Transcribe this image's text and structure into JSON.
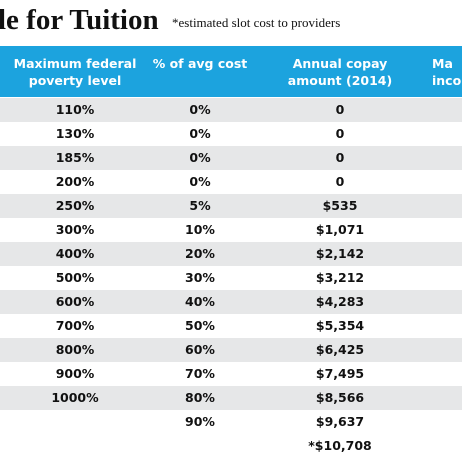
{
  "header": {
    "title": "le for Tuition",
    "note": "*estimated slot cost to providers"
  },
  "table": {
    "columns": [
      [
        "Maximum federal",
        "poverty level"
      ],
      [
        "% of avg cost"
      ],
      [
        "Annual copay",
        "amount (2014)"
      ],
      [
        "Ma",
        "inco"
      ]
    ],
    "rows": [
      [
        "110%",
        "0%",
        "0"
      ],
      [
        "130%",
        "0%",
        "0"
      ],
      [
        "185%",
        "0%",
        "0"
      ],
      [
        "200%",
        "0%",
        "0"
      ],
      [
        "250%",
        "5%",
        "$535"
      ],
      [
        "300%",
        "10%",
        "$1,071"
      ],
      [
        "400%",
        "20%",
        "$2,142"
      ],
      [
        "500%",
        "30%",
        "$3,212"
      ],
      [
        "600%",
        "40%",
        "$4,283"
      ],
      [
        "700%",
        "50%",
        "$5,354"
      ],
      [
        "800%",
        "60%",
        "$6,425"
      ],
      [
        "900%",
        "70%",
        "$7,495"
      ],
      [
        "1000%",
        "80%",
        "$8,566"
      ],
      [
        null,
        "90%",
        "$9,637"
      ],
      [
        null,
        null,
        "*$10,708"
      ]
    ]
  }
}
